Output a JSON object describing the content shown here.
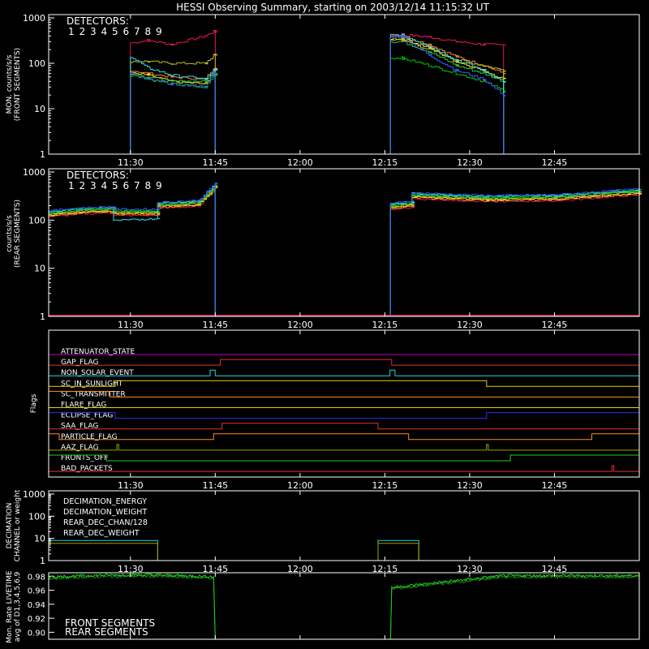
{
  "title": "HESSI Observing Summary, starting on 2003/12/14 11:15:32 UT",
  "colors": {
    "background": "#000000",
    "axes": "#ffffff",
    "det": [
      "#e6194b",
      "#e6194b",
      "#f58231",
      "#ffe119",
      "#bcbd22",
      "#2ecc40",
      "#00c800",
      "#33ddee",
      "#3b5bff"
    ],
    "front_dominant": "#2b46ff",
    "rear_dominant": "#e2206a"
  },
  "x_ticks": [
    "11:30",
    "11:45",
    "12:00",
    "12:15",
    "12:30",
    "12:45"
  ],
  "detectors_label": "DETECTORS:",
  "detector_numbers": [
    "1",
    "2",
    "3",
    "4",
    "5",
    "6",
    "7",
    "8",
    "9"
  ],
  "chart_data": [
    {
      "type": "line",
      "ylabel": [
        "MON. counts/s/s",
        "(FRONT SEGMENTS)"
      ],
      "yscale": "log",
      "ylim": [
        1,
        1000
      ],
      "yticks": [
        "1000",
        "100",
        "10",
        "1"
      ],
      "xlim_minutes": [
        11.25,
        14.0
      ],
      "series": [
        {
          "name": "1",
          "color": "#e6194b",
          "points": [
            [
              11.25,
              1
            ],
            [
              11.25,
              1
            ],
            [
              11.5,
              1
            ],
            [
              11.5,
              280
            ],
            [
              11.6,
              320
            ],
            [
              11.7,
              260
            ],
            [
              11.735,
              400
            ],
            [
              11.75,
              500
            ],
            [
              11.75,
              1
            ],
            [
              12.2667,
              1
            ],
            [
              12.2667,
              420
            ],
            [
              12.35,
              380
            ],
            [
              12.45,
              300
            ],
            [
              12.55,
              260
            ],
            [
              12.6,
              250
            ],
            [
              12.6,
              1
            ],
            [
              13.0,
              1
            ]
          ]
        },
        {
          "name": "9",
          "color": "#2b46ff",
          "points": [
            [
              11.25,
              1
            ],
            [
              11.5,
              1
            ],
            [
              11.5,
              60
            ],
            [
              11.6,
              45
            ],
            [
              11.7,
              35
            ],
            [
              11.75,
              60
            ],
            [
              11.75,
              1
            ],
            [
              12.2667,
              1
            ],
            [
              12.2667,
              380
            ],
            [
              12.35,
              150
            ],
            [
              12.45,
              70
            ],
            [
              12.55,
              45
            ],
            [
              12.6,
              20
            ],
            [
              12.6,
              1
            ],
            [
              13.0,
              1
            ]
          ]
        }
      ]
    },
    {
      "type": "line",
      "ylabel": [
        "counts/s/s",
        "(REAR SEGMENTS)"
      ],
      "yscale": "log",
      "ylim": [
        1,
        1000
      ],
      "yticks": [
        "1000",
        "100",
        "10",
        "1"
      ],
      "series": [
        {
          "name": "1",
          "color": "#e2206a",
          "points": [
            [
              11.25,
              150
            ],
            [
              11.4,
              170
            ],
            [
              11.55,
              120
            ],
            [
              11.58,
              170
            ],
            [
              11.72,
              250
            ],
            [
              11.75,
              600
            ],
            [
              11.75,
              1
            ],
            [
              12.25,
              1
            ],
            [
              12.25,
              200
            ],
            [
              12.3,
              210
            ],
            [
              12.32,
              340
            ],
            [
              12.6,
              280
            ],
            [
              12.8,
              320
            ],
            [
              13.0,
              400
            ]
          ]
        },
        {
          "name": "8",
          "color": "#33ddee",
          "points": [
            [
              11.25,
              140
            ],
            [
              11.4,
              160
            ],
            [
              11.4,
              90
            ],
            [
              11.45,
              100
            ],
            [
              11.58,
              170
            ],
            [
              11.75,
              550
            ],
            [
              11.75,
              1
            ],
            [
              12.25,
              1
            ],
            [
              12.25,
              220
            ],
            [
              12.32,
              360
            ],
            [
              12.6,
              300
            ],
            [
              13.0,
              420
            ]
          ]
        }
      ]
    },
    {
      "type": "flags",
      "ylabel": "Flags",
      "flags": [
        {
          "name": "ATTENUATOR_STATE",
          "color": "#c000c0"
        },
        {
          "name": "GAP_FLAG",
          "color": "#e53030"
        },
        {
          "name": "NON_SOLAR_EVENT",
          "color": "#22d8e0"
        },
        {
          "name": "SC_IN_SUNLIGHT",
          "color": "#e6d000"
        },
        {
          "name": "SC_TRANSMITTER",
          "color": "#ff8c20"
        },
        {
          "name": "FLARE_FLAG",
          "color": "#e6d000"
        },
        {
          "name": "ECLIPSE_FLAG",
          "color": "#2b2bff"
        },
        {
          "name": "SAA_FLAG",
          "color": "#e53030"
        },
        {
          "name": "PARTICLE_FLAG",
          "color": "#ff8c20"
        },
        {
          "name": "AAZ_FLAG",
          "color": "#a0a000"
        },
        {
          "name": "FRONTS_OFF",
          "color": "#20d020"
        },
        {
          "name": "BAD_PACKETS",
          "color": "#e53030"
        }
      ]
    },
    {
      "type": "line",
      "ylabel": [
        "DECIMATION",
        "CHANNEL or weight"
      ],
      "yscale": "log",
      "ylim": [
        1,
        1000
      ],
      "yticks": [
        "1000",
        "100",
        "10",
        "1"
      ],
      "legend": [
        {
          "name": "DECIMATION_ENERGY",
          "color": "#20d020"
        },
        {
          "name": "DECIMATION_WEIGHT",
          "color": "#ff8c20"
        },
        {
          "name": "REAR_DEC_CHAN/128",
          "color": "#22d8e0"
        },
        {
          "name": "REAR_DEC_WEIGHT",
          "color": "#a0a000"
        }
      ]
    },
    {
      "type": "line",
      "ylabel": [
        "Mon. Rate LIVETIME",
        "avg of D1,3,4,5,6,9"
      ],
      "ylim": [
        0.89,
        0.985
      ],
      "yticks": [
        "0.98",
        "0.96",
        "0.94",
        "0.92",
        "0.90"
      ],
      "legend": [
        {
          "name": "FRONT SEGMENTS",
          "color": "#20d020"
        },
        {
          "name": "REAR SEGMENTS",
          "color": "#1a8a1a"
        }
      ]
    }
  ]
}
